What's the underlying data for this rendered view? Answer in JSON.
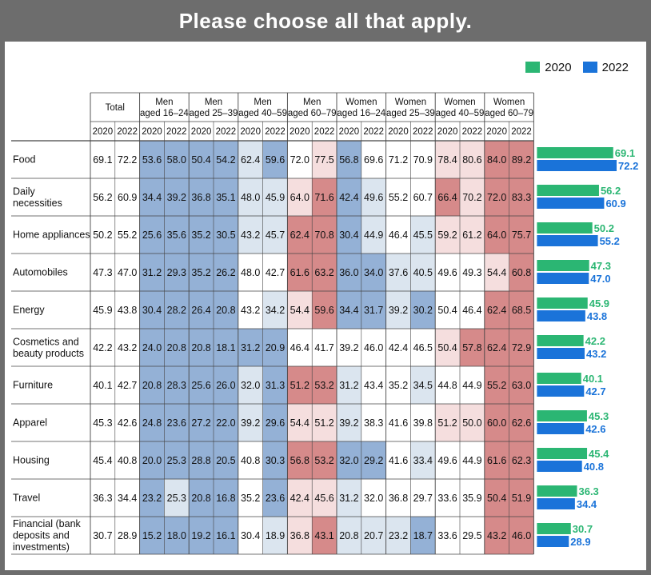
{
  "title": "Please choose all that apply.",
  "colors": {
    "y2020": "#2bb673",
    "y2022": "#1a73d9",
    "blue_strong": "#94b1d6",
    "blue_light": "#dbe5ef",
    "red_strong": "#d68a8a",
    "red_light": "#f5dede",
    "white": "#ffffff",
    "grid": "#444444"
  },
  "legend": [
    {
      "label": "2020",
      "color": "#2bb673"
    },
    {
      "label": "2022",
      "color": "#1a73d9"
    }
  ],
  "chart_data": {
    "type": "table",
    "groups": [
      {
        "label1": "Total",
        "label2": ""
      },
      {
        "label1": "Men",
        "label2": "aged 16–24"
      },
      {
        "label1": "Men",
        "label2": "aged 25–39"
      },
      {
        "label1": "Men",
        "label2": "aged 40–59"
      },
      {
        "label1": "Men",
        "label2": "aged 60–79"
      },
      {
        "label1": "Women",
        "label2": "aged 16–24"
      },
      {
        "label1": "Women",
        "label2": "aged 25–39"
      },
      {
        "label1": "Women",
        "label2": "aged 40–59"
      },
      {
        "label1": "Women",
        "label2": "aged 60–79"
      }
    ],
    "years": [
      "2020",
      "2022"
    ],
    "rows": [
      {
        "label": "Food",
        "values": [
          "69.1",
          "72.2",
          "53.6",
          "58.0",
          "50.4",
          "54.2",
          "62.4",
          "59.6",
          "72.0",
          "77.5",
          "56.8",
          "69.6",
          "71.2",
          "70.9",
          "78.4",
          "80.6",
          "84.0",
          "89.2"
        ],
        "shade": [
          "w",
          "w",
          "B",
          "B",
          "B",
          "B",
          "b",
          "B",
          "w",
          "r",
          "B",
          "w",
          "w",
          "w",
          "r",
          "r",
          "R",
          "R"
        ]
      },
      {
        "label": "Daily necessities",
        "values": [
          "56.2",
          "60.9",
          "34.4",
          "39.2",
          "36.8",
          "35.1",
          "48.0",
          "45.9",
          "64.0",
          "71.6",
          "42.4",
          "49.6",
          "55.2",
          "60.7",
          "66.4",
          "70.2",
          "72.0",
          "83.3"
        ],
        "shade": [
          "w",
          "w",
          "B",
          "B",
          "B",
          "B",
          "b",
          "b",
          "r",
          "R",
          "B",
          "b",
          "w",
          "w",
          "R",
          "r",
          "R",
          "R"
        ]
      },
      {
        "label": "Home appliances",
        "values": [
          "50.2",
          "55.2",
          "25.6",
          "35.6",
          "35.2",
          "30.5",
          "43.2",
          "45.7",
          "62.4",
          "70.8",
          "30.4",
          "44.9",
          "46.4",
          "45.5",
          "59.2",
          "61.2",
          "64.0",
          "75.7"
        ],
        "shade": [
          "w",
          "w",
          "B",
          "B",
          "B",
          "B",
          "b",
          "b",
          "R",
          "R",
          "B",
          "b",
          "w",
          "b",
          "r",
          "r",
          "R",
          "R"
        ]
      },
      {
        "label": "Automobiles",
        "values": [
          "47.3",
          "47.0",
          "31.2",
          "29.3",
          "35.2",
          "26.2",
          "48.0",
          "42.7",
          "61.6",
          "63.2",
          "36.0",
          "34.0",
          "37.6",
          "40.5",
          "49.6",
          "49.3",
          "54.4",
          "60.8"
        ],
        "shade": [
          "w",
          "w",
          "B",
          "B",
          "B",
          "B",
          "w",
          "w",
          "R",
          "R",
          "B",
          "B",
          "b",
          "b",
          "w",
          "w",
          "r",
          "R"
        ]
      },
      {
        "label": "Energy",
        "values": [
          "45.9",
          "43.8",
          "30.4",
          "28.2",
          "26.4",
          "20.8",
          "43.2",
          "34.2",
          "54.4",
          "59.6",
          "34.4",
          "31.7",
          "39.2",
          "30.2",
          "50.4",
          "46.4",
          "62.4",
          "68.5"
        ],
        "shade": [
          "w",
          "w",
          "B",
          "B",
          "B",
          "B",
          "w",
          "b",
          "r",
          "R",
          "B",
          "B",
          "b",
          "B",
          "w",
          "w",
          "R",
          "R"
        ]
      },
      {
        "label": "Cosmetics and beauty products",
        "values": [
          "42.2",
          "43.2",
          "24.0",
          "20.8",
          "20.8",
          "18.1",
          "31.2",
          "20.9",
          "46.4",
          "41.7",
          "39.2",
          "46.0",
          "42.4",
          "46.5",
          "50.4",
          "57.8",
          "62.4",
          "72.9"
        ],
        "shade": [
          "w",
          "w",
          "B",
          "B",
          "B",
          "B",
          "B",
          "B",
          "w",
          "w",
          "w",
          "w",
          "w",
          "w",
          "r",
          "R",
          "R",
          "R"
        ]
      },
      {
        "label": "Furniture",
        "values": [
          "40.1",
          "42.7",
          "20.8",
          "28.3",
          "25.6",
          "26.0",
          "32.0",
          "31.3",
          "51.2",
          "53.2",
          "31.2",
          "43.4",
          "35.2",
          "34.5",
          "44.8",
          "44.9",
          "55.2",
          "63.0"
        ],
        "shade": [
          "w",
          "w",
          "B",
          "B",
          "B",
          "B",
          "b",
          "B",
          "R",
          "R",
          "b",
          "w",
          "w",
          "b",
          "w",
          "w",
          "R",
          "R"
        ]
      },
      {
        "label": "Apparel",
        "values": [
          "45.3",
          "42.6",
          "24.8",
          "23.6",
          "27.2",
          "22.0",
          "39.2",
          "29.6",
          "54.4",
          "51.2",
          "39.2",
          "38.3",
          "41.6",
          "39.8",
          "51.2",
          "50.0",
          "60.0",
          "62.6"
        ],
        "shade": [
          "w",
          "w",
          "B",
          "B",
          "B",
          "B",
          "b",
          "B",
          "r",
          "r",
          "b",
          "w",
          "w",
          "w",
          "r",
          "r",
          "R",
          "R"
        ]
      },
      {
        "label": "Housing",
        "values": [
          "45.4",
          "40.8",
          "20.0",
          "25.3",
          "28.8",
          "20.5",
          "40.8",
          "30.3",
          "56.8",
          "53.2",
          "32.0",
          "29.2",
          "41.6",
          "33.4",
          "49.6",
          "44.9",
          "61.6",
          "62.3"
        ],
        "shade": [
          "w",
          "w",
          "B",
          "B",
          "B",
          "B",
          "w",
          "B",
          "R",
          "R",
          "B",
          "B",
          "w",
          "b",
          "w",
          "w",
          "R",
          "R"
        ]
      },
      {
        "label": "Travel",
        "values": [
          "36.3",
          "34.4",
          "23.2",
          "25.3",
          "20.8",
          "16.8",
          "35.2",
          "23.6",
          "42.4",
          "45.6",
          "31.2",
          "32.0",
          "36.8",
          "29.7",
          "33.6",
          "35.9",
          "50.4",
          "51.9"
        ],
        "shade": [
          "w",
          "w",
          "B",
          "b",
          "B",
          "B",
          "w",
          "B",
          "r",
          "r",
          "b",
          "w",
          "w",
          "w",
          "w",
          "w",
          "R",
          "R"
        ]
      },
      {
        "label": "Financial (bank deposits and investments)",
        "values": [
          "30.7",
          "28.9",
          "15.2",
          "18.0",
          "19.2",
          "16.1",
          "30.4",
          "18.9",
          "36.8",
          "43.1",
          "20.8",
          "20.7",
          "23.2",
          "18.7",
          "33.6",
          "29.5",
          "43.2",
          "46.0"
        ],
        "shade": [
          "w",
          "w",
          "B",
          "B",
          "B",
          "B",
          "w",
          "b",
          "r",
          "R",
          "b",
          "b",
          "b",
          "B",
          "w",
          "w",
          "R",
          "R"
        ]
      }
    ],
    "bars": {
      "series": [
        {
          "name": "2020",
          "values": [
            69.1,
            56.2,
            50.2,
            47.3,
            45.9,
            42.2,
            40.1,
            45.3,
            45.4,
            36.3,
            30.7
          ]
        },
        {
          "name": "2022",
          "values": [
            72.2,
            60.9,
            55.2,
            47.0,
            43.8,
            43.2,
            42.7,
            42.6,
            40.8,
            34.4,
            28.9
          ]
        }
      ],
      "labels2020": [
        "69.1",
        "56.2",
        "50.2",
        "47.3",
        "45.9",
        "42.2",
        "40.1",
        "45.3",
        "45.4",
        "36.3",
        "30.7"
      ],
      "labels2022": [
        "72.2",
        "60.9",
        "55.2",
        "47.0",
        "43.8",
        "43.2",
        "42.7",
        "42.6",
        "40.8",
        "34.4",
        "28.9"
      ],
      "xlim": [
        0,
        100
      ]
    }
  }
}
